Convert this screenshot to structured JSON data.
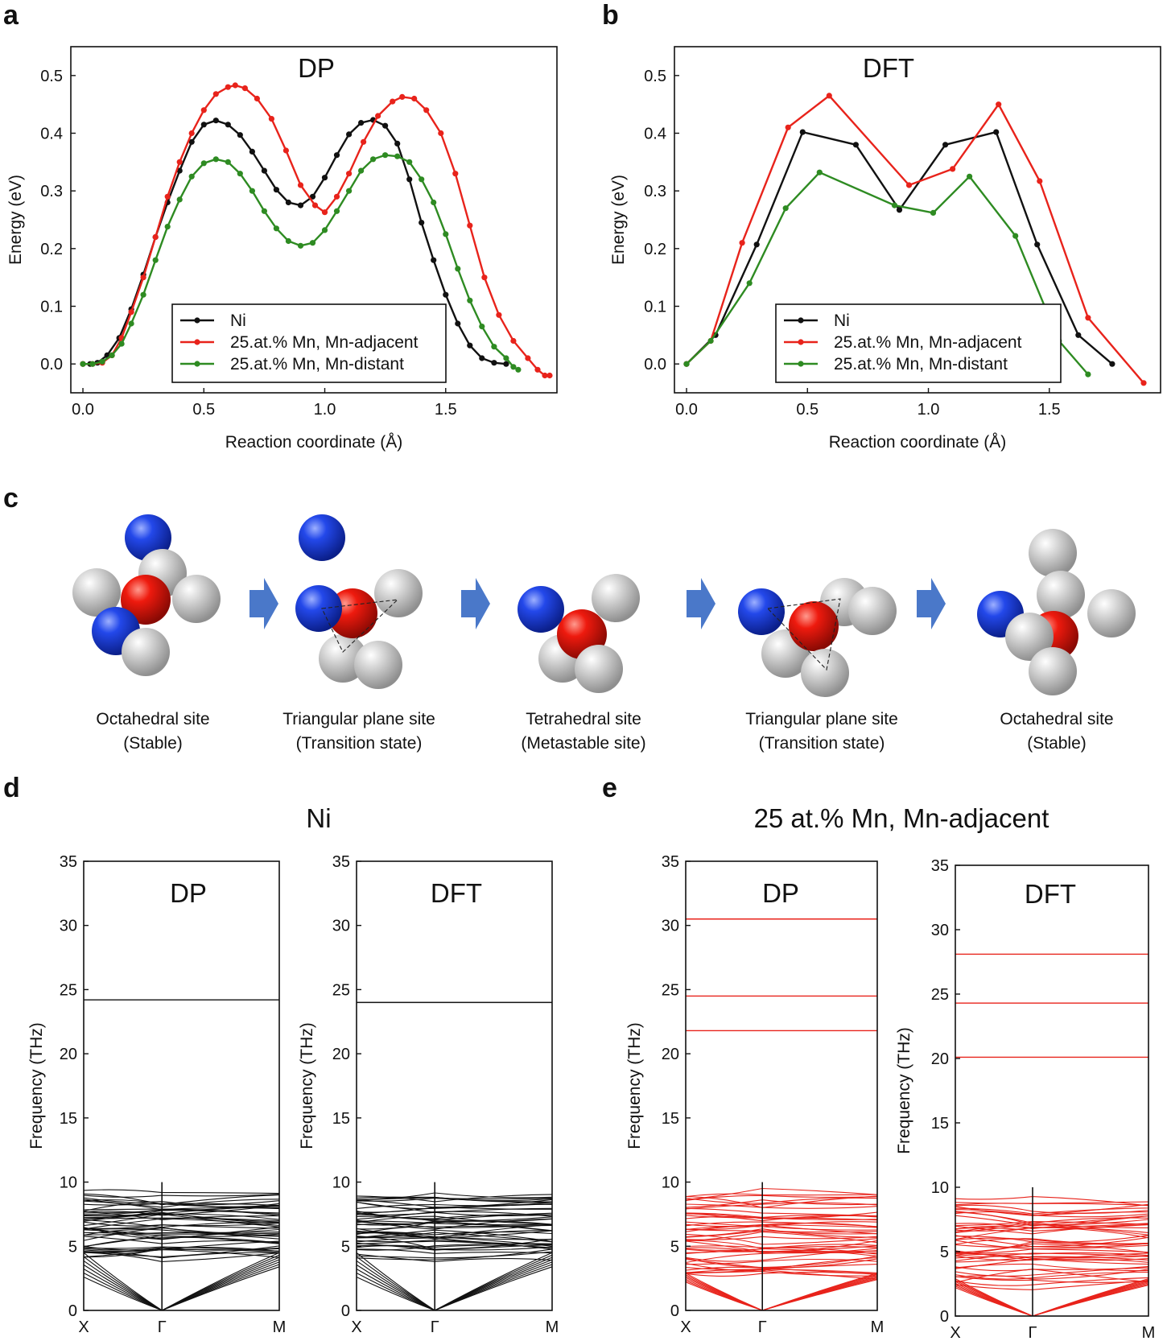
{
  "panel_labels": {
    "a": "a",
    "b": "b",
    "c": "c",
    "d": "d",
    "e": "e"
  },
  "colors": {
    "ni": "#111111",
    "adjacent": "#e8231b",
    "distant": "#2e8b22",
    "mn_atom": "#e8160e",
    "solute_atom": "#1f3fe0",
    "host_atom": "#c8c8c8",
    "arrow": "#4a78c9"
  },
  "diagram": {
    "sites": [
      {
        "name": "Octahedral site",
        "note": "(Stable)"
      },
      {
        "name": "Triangular plane site",
        "note": "(Transition state)"
      },
      {
        "name": "Tetrahedral site",
        "note": "(Metastable site)"
      },
      {
        "name": "Triangular plane site",
        "note": "(Transition state)"
      },
      {
        "name": "Octahedral site",
        "note": "(Stable)"
      }
    ]
  },
  "phonon_groups": [
    {
      "title": "Ni"
    },
    {
      "title": "25 at.% Mn, Mn-adjacent"
    }
  ],
  "chart_data": [
    {
      "panel": "a",
      "type": "line",
      "title": "DP",
      "xlabel": "Reaction coordinate (Å)",
      "ylabel": "Energy (eV)",
      "xlim": [
        -0.05,
        1.96
      ],
      "ylim": [
        -0.05,
        0.55
      ],
      "xticks": [
        "0.0",
        "0.5",
        "1.0",
        "1.5"
      ],
      "yticks": [
        "0.0",
        "0.1",
        "0.2",
        "0.3",
        "0.4",
        "0.5"
      ],
      "legend": "bottom-center",
      "series": [
        {
          "name": "Ni",
          "color": "#111111",
          "x": [
            0.0,
            0.03,
            0.06,
            0.1,
            0.15,
            0.2,
            0.25,
            0.3,
            0.35,
            0.4,
            0.45,
            0.5,
            0.55,
            0.6,
            0.65,
            0.7,
            0.75,
            0.8,
            0.85,
            0.9,
            0.95,
            1.0,
            1.05,
            1.1,
            1.15,
            1.2,
            1.25,
            1.3,
            1.35,
            1.4,
            1.45,
            1.5,
            1.55,
            1.6,
            1.65,
            1.7,
            1.75
          ],
          "y": [
            0.0,
            0.0,
            0.002,
            0.015,
            0.045,
            0.095,
            0.155,
            0.22,
            0.28,
            0.335,
            0.385,
            0.415,
            0.422,
            0.415,
            0.397,
            0.368,
            0.335,
            0.302,
            0.28,
            0.275,
            0.29,
            0.323,
            0.362,
            0.398,
            0.418,
            0.423,
            0.413,
            0.382,
            0.32,
            0.245,
            0.18,
            0.12,
            0.07,
            0.032,
            0.01,
            0.002,
            0.0
          ]
        },
        {
          "name": "25.at.% Mn, Mn-adjacent",
          "color": "#e8231b",
          "x": [
            0.0,
            0.04,
            0.08,
            0.12,
            0.16,
            0.2,
            0.25,
            0.3,
            0.35,
            0.4,
            0.45,
            0.5,
            0.55,
            0.6,
            0.63,
            0.67,
            0.72,
            0.78,
            0.84,
            0.9,
            0.96,
            1.0,
            1.05,
            1.1,
            1.16,
            1.22,
            1.28,
            1.32,
            1.37,
            1.42,
            1.48,
            1.54,
            1.6,
            1.66,
            1.72,
            1.78,
            1.84,
            1.88,
            1.91,
            1.93
          ],
          "y": [
            0.0,
            0.0,
            0.002,
            0.015,
            0.045,
            0.09,
            0.15,
            0.22,
            0.29,
            0.35,
            0.4,
            0.44,
            0.468,
            0.48,
            0.483,
            0.478,
            0.46,
            0.425,
            0.37,
            0.31,
            0.275,
            0.263,
            0.29,
            0.33,
            0.385,
            0.43,
            0.455,
            0.463,
            0.46,
            0.44,
            0.4,
            0.33,
            0.24,
            0.15,
            0.085,
            0.04,
            0.01,
            -0.01,
            -0.02,
            -0.02
          ]
        },
        {
          "name": "25.at.% Mn, Mn-distant",
          "color": "#2e8b22",
          "x": [
            0.0,
            0.04,
            0.08,
            0.12,
            0.16,
            0.2,
            0.25,
            0.3,
            0.35,
            0.4,
            0.45,
            0.5,
            0.55,
            0.6,
            0.65,
            0.7,
            0.75,
            0.8,
            0.85,
            0.9,
            0.95,
            1.0,
            1.05,
            1.1,
            1.15,
            1.2,
            1.25,
            1.3,
            1.35,
            1.4,
            1.45,
            1.5,
            1.55,
            1.6,
            1.65,
            1.7,
            1.75,
            1.78,
            1.8
          ],
          "y": [
            0.0,
            0.0,
            0.004,
            0.015,
            0.035,
            0.07,
            0.12,
            0.18,
            0.238,
            0.285,
            0.325,
            0.348,
            0.355,
            0.35,
            0.33,
            0.3,
            0.265,
            0.235,
            0.213,
            0.205,
            0.21,
            0.232,
            0.265,
            0.3,
            0.335,
            0.355,
            0.362,
            0.36,
            0.35,
            0.32,
            0.28,
            0.225,
            0.165,
            0.11,
            0.065,
            0.03,
            0.01,
            -0.005,
            -0.01
          ]
        }
      ]
    },
    {
      "panel": "b",
      "type": "line",
      "title": "DFT",
      "xlabel": "Reaction coordinate (Å)",
      "ylabel": "Energy (eV)",
      "xlim": [
        -0.05,
        1.96
      ],
      "ylim": [
        -0.05,
        0.55
      ],
      "xticks": [
        "0.0",
        "0.5",
        "1.0",
        "1.5"
      ],
      "yticks": [
        "0.0",
        "0.1",
        "0.2",
        "0.3",
        "0.4",
        "0.5"
      ],
      "legend": "bottom-center",
      "series": [
        {
          "name": "Ni",
          "color": "#111111",
          "x": [
            0.0,
            0.12,
            0.29,
            0.48,
            0.7,
            0.88,
            1.07,
            1.28,
            1.45,
            1.62,
            1.76
          ],
          "y": [
            0.0,
            0.05,
            0.207,
            0.402,
            0.38,
            0.267,
            0.38,
            0.402,
            0.207,
            0.05,
            0.0
          ]
        },
        {
          "name": "25.at.% Mn, Mn-adjacent",
          "color": "#e8231b",
          "x": [
            0.0,
            0.1,
            0.23,
            0.42,
            0.59,
            0.92,
            1.1,
            1.29,
            1.46,
            1.66,
            1.89
          ],
          "y": [
            0.0,
            0.04,
            0.21,
            0.41,
            0.465,
            0.31,
            0.338,
            0.45,
            0.317,
            0.08,
            -0.033
          ]
        },
        {
          "name": "25.at.% Mn, Mn-distant",
          "color": "#2e8b22",
          "x": [
            0.0,
            0.1,
            0.26,
            0.41,
            0.55,
            0.86,
            1.02,
            1.17,
            1.36,
            1.54,
            1.66
          ],
          "y": [
            0.0,
            0.04,
            0.14,
            0.27,
            0.332,
            0.275,
            0.262,
            0.325,
            0.222,
            0.04,
            -0.018
          ]
        }
      ]
    },
    {
      "panel": "d-DP",
      "type": "line",
      "title": "DP",
      "ylabel": "Frequency (THz)",
      "ylim": [
        0,
        35
      ],
      "yticks": [
        "0",
        "5",
        "10",
        "15",
        "20",
        "25",
        "30",
        "35"
      ],
      "xticks": [
        "X",
        "Γ",
        "M"
      ],
      "color": "#111111",
      "flat_bands_THz": [
        24.2
      ],
      "acoustic_edge_THz": {
        "X": 2.6,
        "M": 3.4
      },
      "dense_band_range_THz": [
        4.2,
        9.0
      ],
      "gamma_line_top_THz": 10.0
    },
    {
      "panel": "d-DFT",
      "type": "line",
      "title": "DFT",
      "ylabel": "Frequency (THz)",
      "ylim": [
        0,
        35
      ],
      "yticks": [
        "0",
        "5",
        "10",
        "15",
        "20",
        "25",
        "30",
        "35"
      ],
      "xticks": [
        "X",
        "Γ",
        "M"
      ],
      "color": "#111111",
      "flat_bands_THz": [
        24.0
      ],
      "acoustic_edge_THz": {
        "X": 2.6,
        "M": 3.4
      },
      "dense_band_range_THz": [
        4.2,
        9.0
      ],
      "gamma_line_top_THz": 10.0
    },
    {
      "panel": "e-DP",
      "type": "line",
      "title": "DP",
      "ylabel": "Frequency (THz)",
      "ylim": [
        0,
        35
      ],
      "yticks": [
        "0",
        "5",
        "10",
        "15",
        "20",
        "25",
        "30",
        "35"
      ],
      "xticks": [
        "X",
        "Γ",
        "M"
      ],
      "color": "#e8231b",
      "flat_bands_THz": [
        30.5,
        24.5,
        21.8
      ],
      "acoustic_edge_THz": {
        "X": 2.2,
        "M": 2.4
      },
      "dense_band_range_THz": [
        2.6,
        9.0
      ],
      "gamma_line_top_THz": 10.0
    },
    {
      "panel": "e-DFT",
      "type": "line",
      "title": "DFT",
      "ylabel": "Frequency (THz)",
      "ylim": [
        0,
        35
      ],
      "yticks": [
        "0",
        "5",
        "10",
        "15",
        "20",
        "25",
        "30",
        "35"
      ],
      "xticks": [
        "X",
        "Γ",
        "M"
      ],
      "color": "#e8231b",
      "flat_bands_THz": [
        28.1,
        24.3,
        20.1
      ],
      "acoustic_edge_THz": {
        "X": 2.2,
        "M": 2.4
      },
      "dense_band_range_THz": [
        2.6,
        9.0
      ],
      "gamma_line_top_THz": 10.0
    }
  ]
}
